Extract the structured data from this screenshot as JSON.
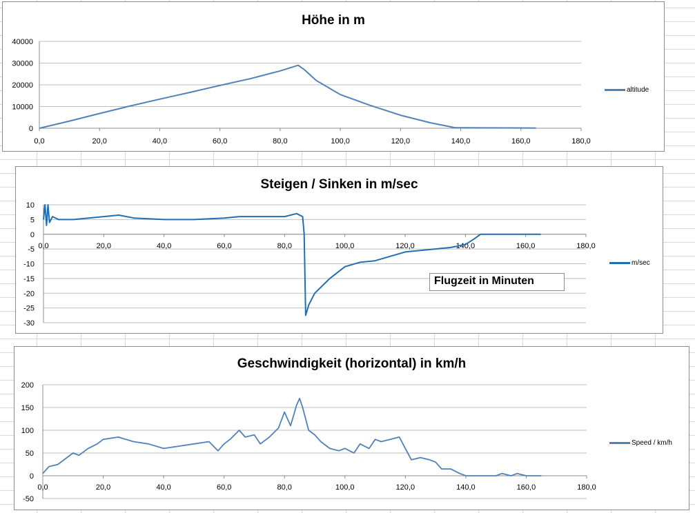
{
  "chart_data": [
    {
      "type": "line",
      "title": "Höhe in m",
      "xlim": [
        0,
        180
      ],
      "ylim": [
        0,
        40000
      ],
      "xticks": [
        "0,0",
        "20,0",
        "40,0",
        "60,0",
        "80,0",
        "100,0",
        "120,0",
        "140,0",
        "160,0",
        "180,0"
      ],
      "yticks": [
        "0",
        "10000",
        "20000",
        "30000",
        "40000"
      ],
      "grid": true,
      "legend": "right",
      "series": [
        {
          "name": "altitude",
          "color": "#4f81bd",
          "x": [
            0,
            10,
            20,
            30,
            40,
            50,
            60,
            70,
            80,
            86,
            88,
            92,
            100,
            110,
            120,
            130,
            138,
            145,
            155,
            165
          ],
          "y": [
            0,
            3300,
            6800,
            10200,
            13400,
            16500,
            19700,
            22800,
            26400,
            29000,
            27000,
            22000,
            15500,
            10500,
            6000,
            2500,
            300,
            200,
            150,
            100
          ]
        }
      ]
    },
    {
      "type": "line",
      "title": "Steigen / Sinken in m/sec",
      "xlim": [
        0,
        180
      ],
      "ylim": [
        -30,
        10
      ],
      "xticks": [
        "0,0",
        "20,0",
        "40,0",
        "60,0",
        "80,0",
        "100,0",
        "120,0",
        "140,0",
        "160,0",
        "180,0"
      ],
      "yticks": [
        "10",
        "5",
        "0",
        "-5",
        "-10",
        "-15",
        "-20",
        "-25",
        "-30"
      ],
      "grid": true,
      "legend": "right",
      "annotation": "Flugzeit in Minuten",
      "series": [
        {
          "name": "m/sec",
          "color": "#1f6fb4",
          "x": [
            0,
            0.5,
            1,
            1.5,
            2,
            3,
            5,
            10,
            20,
            25,
            30,
            40,
            50,
            60,
            65,
            70,
            80,
            84,
            86,
            86.5,
            87,
            88,
            90,
            95,
            100,
            105,
            110,
            115,
            120,
            125,
            130,
            135,
            140,
            143,
            145,
            150,
            160,
            163,
            165
          ],
          "y": [
            5,
            10,
            3,
            10,
            4,
            6,
            5,
            5,
            6,
            6.5,
            5.5,
            5,
            5,
            5.5,
            6,
            6,
            6,
            7,
            6,
            0,
            -27.5,
            -24,
            -20,
            -15,
            -11,
            -9.5,
            -9,
            -7.5,
            -6,
            -5.5,
            -5,
            -4.5,
            -3.5,
            -1.5,
            0,
            0,
            0,
            0,
            0
          ]
        }
      ]
    },
    {
      "type": "line",
      "title": "Geschwindigkeit (horizontal) in km/h",
      "xlim": [
        0,
        180
      ],
      "ylim": [
        -50,
        200
      ],
      "xticks": [
        "0,0",
        "20,0",
        "40,0",
        "60,0",
        "80,0",
        "100,0",
        "120,0",
        "140,0",
        "160,0",
        "180,0"
      ],
      "yticks": [
        "200",
        "150",
        "100",
        "50",
        "0",
        "-50"
      ],
      "grid": true,
      "legend": "right",
      "series": [
        {
          "name": "Speed  / km/h",
          "color": "#4f81bd",
          "x": [
            0,
            2,
            5,
            8,
            10,
            12,
            15,
            18,
            20,
            25,
            30,
            35,
            40,
            45,
            50,
            55,
            58,
            60,
            62,
            65,
            67,
            70,
            72,
            75,
            78,
            80,
            82,
            84,
            85,
            86,
            88,
            90,
            92,
            95,
            98,
            100,
            103,
            105,
            108,
            110,
            112,
            115,
            118,
            120,
            122,
            125,
            128,
            130,
            132,
            135,
            138,
            140,
            145,
            150,
            152,
            155,
            157,
            160,
            165
          ],
          "y": [
            5,
            20,
            25,
            40,
            50,
            45,
            60,
            70,
            80,
            85,
            75,
            70,
            60,
            65,
            70,
            75,
            55,
            70,
            80,
            100,
            85,
            90,
            70,
            85,
            105,
            140,
            110,
            155,
            170,
            150,
            100,
            90,
            75,
            60,
            55,
            60,
            50,
            70,
            60,
            80,
            75,
            80,
            85,
            60,
            35,
            40,
            35,
            30,
            15,
            15,
            5,
            0,
            0,
            0,
            5,
            0,
            5,
            0,
            0
          ]
        }
      ]
    }
  ]
}
